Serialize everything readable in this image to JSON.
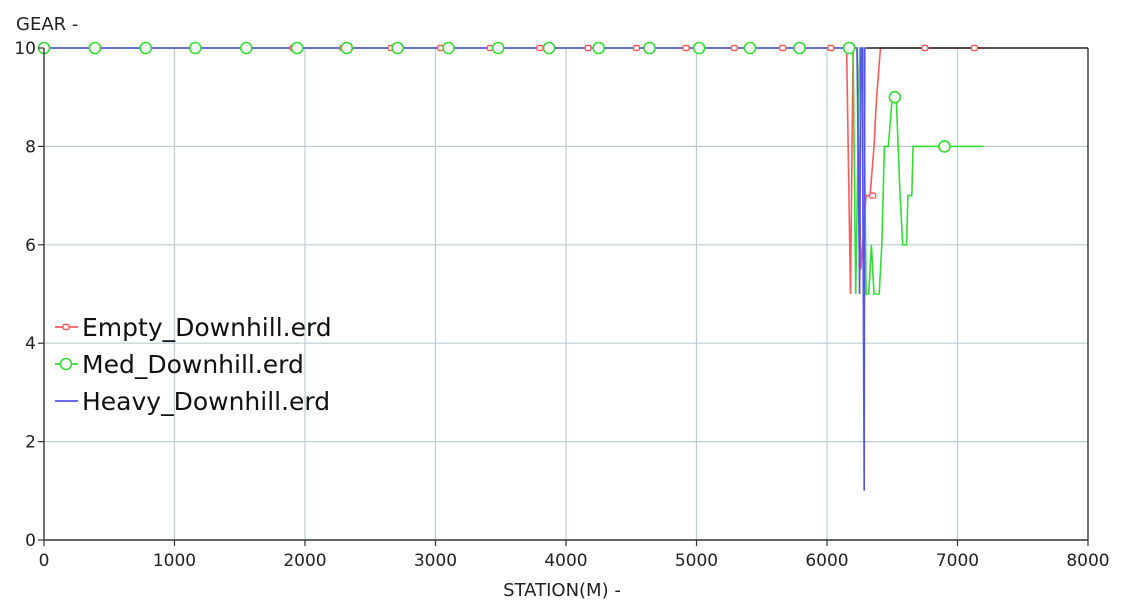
{
  "chart_data": {
    "type": "line",
    "title": "",
    "xlabel": "STATION(M) -",
    "ylabel": "GEAR -",
    "xlim": [
      0,
      8000
    ],
    "ylim": [
      0,
      10
    ],
    "x_ticks": [
      "0",
      "1000",
      "2000",
      "3000",
      "4000",
      "5000",
      "6000",
      "7000",
      "8000"
    ],
    "y_ticks": [
      "0",
      "2",
      "4",
      "6",
      "8",
      "10"
    ],
    "grid": true,
    "legend_position": "center-left",
    "series": [
      {
        "name": "Empty_Downhill.erd",
        "color": "#ff5a5a",
        "marker": "small-square",
        "points": [
          [
            0,
            10
          ],
          [
            6150,
            10
          ],
          [
            6180,
            5
          ],
          [
            6200,
            10
          ],
          [
            6230,
            10
          ],
          [
            6260,
            5.5
          ],
          [
            6300,
            7
          ],
          [
            6330,
            7
          ],
          [
            6360,
            8
          ],
          [
            6380,
            9
          ],
          [
            6410,
            10
          ],
          [
            6500,
            10
          ],
          [
            7200,
            10
          ]
        ],
        "marker_points": [
          [
            370,
            10
          ],
          [
            760,
            10
          ],
          [
            1540,
            10
          ],
          [
            1910,
            10
          ],
          [
            2290,
            10
          ],
          [
            2660,
            10
          ],
          [
            3040,
            10
          ],
          [
            3420,
            10
          ],
          [
            3800,
            10
          ],
          [
            4170,
            10
          ],
          [
            4540,
            10
          ],
          [
            4920,
            10
          ],
          [
            5290,
            10
          ],
          [
            5660,
            10
          ],
          [
            6030,
            10
          ],
          [
            6350,
            7
          ],
          [
            6750,
            10
          ],
          [
            7130,
            10
          ]
        ]
      },
      {
        "name": "Med_Downhill.erd",
        "color": "#33dd33",
        "marker": "open-circle",
        "points": [
          [
            0,
            10
          ],
          [
            6200,
            10
          ],
          [
            6220,
            5
          ],
          [
            6250,
            10
          ],
          [
            6280,
            10
          ],
          [
            6300,
            5
          ],
          [
            6320,
            5
          ],
          [
            6340,
            6
          ],
          [
            6360,
            5
          ],
          [
            6400,
            5
          ],
          [
            6420,
            6
          ],
          [
            6440,
            8
          ],
          [
            6470,
            8
          ],
          [
            6500,
            9
          ],
          [
            6530,
            9
          ],
          [
            6560,
            7
          ],
          [
            6580,
            6
          ],
          [
            6610,
            6
          ],
          [
            6620,
            7
          ],
          [
            6650,
            7
          ],
          [
            6660,
            8
          ],
          [
            7200,
            8
          ]
        ],
        "marker_points": [
          [
            0,
            10
          ],
          [
            390,
            10
          ],
          [
            780,
            10
          ],
          [
            1160,
            10
          ],
          [
            1550,
            10
          ],
          [
            1940,
            10
          ],
          [
            2320,
            10
          ],
          [
            2710,
            10
          ],
          [
            3100,
            10
          ],
          [
            3480,
            10
          ],
          [
            3870,
            10
          ],
          [
            4250,
            10
          ],
          [
            4640,
            10
          ],
          [
            5020,
            10
          ],
          [
            5410,
            10
          ],
          [
            5790,
            10
          ],
          [
            6170,
            10
          ],
          [
            6520,
            9
          ],
          [
            6900,
            8
          ]
        ]
      },
      {
        "name": "Heavy_Downhill.erd",
        "color": "#5555ee",
        "marker": "none",
        "points": [
          [
            0,
            10
          ],
          [
            6230,
            10
          ],
          [
            6250,
            5
          ],
          [
            6260,
            10
          ],
          [
            6270,
            10
          ],
          [
            6285,
            1
          ],
          [
            6290,
            10
          ],
          [
            6300,
            10
          ]
        ]
      }
    ],
    "extra_lines": [
      {
        "color": "#222222",
        "points": [
          [
            6300,
            10
          ],
          [
            8000,
            10
          ]
        ]
      }
    ]
  }
}
